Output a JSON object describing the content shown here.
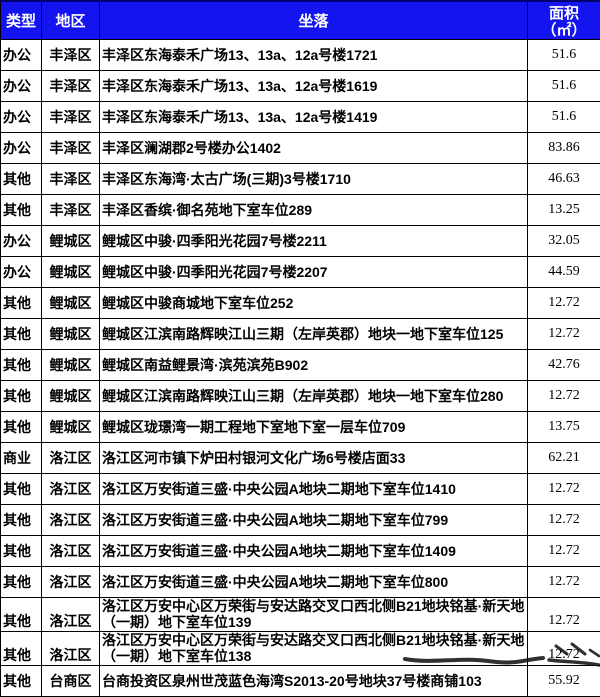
{
  "table": {
    "headers": {
      "type": "类型",
      "district": "地区",
      "location": "坐落",
      "area_line1": "面积",
      "area_line2": "（㎡）"
    },
    "rows": [
      {
        "type": "办公",
        "district": "丰泽区",
        "location": "丰泽区东海泰禾广场13、13a、12a号楼1721",
        "area": "51.6"
      },
      {
        "type": "办公",
        "district": "丰泽区",
        "location": "丰泽区东海泰禾广场13、13a、12a号楼1619",
        "area": "51.6"
      },
      {
        "type": "办公",
        "district": "丰泽区",
        "location": "丰泽区东海泰禾广场13、13a、12a号楼1419",
        "area": "51.6"
      },
      {
        "type": "办公",
        "district": "丰泽区",
        "location": "丰泽区澜湖郡2号楼办公1402",
        "area": "83.86"
      },
      {
        "type": "其他",
        "district": "丰泽区",
        "location": "丰泽区东海湾·太古广场(三期)3号楼1710",
        "area": "46.63"
      },
      {
        "type": "其他",
        "district": "丰泽区",
        "location": "丰泽区香缤·御名苑地下室车位289",
        "area": "13.25"
      },
      {
        "type": "办公",
        "district": "鲤城区",
        "location": "鲤城区中骏·四季阳光花园7号楼2211",
        "area": "32.05"
      },
      {
        "type": "办公",
        "district": "鲤城区",
        "location": "鲤城区中骏·四季阳光花园7号楼2207",
        "area": "44.59"
      },
      {
        "type": "其他",
        "district": "鲤城区",
        "location": "鲤城区中骏商城地下室车位252",
        "area": "12.72"
      },
      {
        "type": "其他",
        "district": "鲤城区",
        "location": "鲤城区江滨南路辉映江山三期（左岸英郡）地块一地下室车位125",
        "area": "12.72"
      },
      {
        "type": "其他",
        "district": "鲤城区",
        "location": "鲤城区南益鲤景湾·滨苑滨苑B902",
        "area": "42.76"
      },
      {
        "type": "其他",
        "district": "鲤城区",
        "location": "鲤城区江滨南路辉映江山三期（左岸英郡）地块一地下室车位280",
        "area": "12.72"
      },
      {
        "type": "其他",
        "district": "鲤城区",
        "location": "鲤城区珑璟湾一期工程地下室地下室一层车位709",
        "area": "13.75"
      },
      {
        "type": "商业",
        "district": "洛江区",
        "location": "洛江区河市镇下炉田村银河文化广场6号楼店面33",
        "area": "62.21"
      },
      {
        "type": "其他",
        "district": "洛江区",
        "location": "洛江区万安街道三盛·中央公园A地块二期地下室车位1410",
        "area": "12.72"
      },
      {
        "type": "其他",
        "district": "洛江区",
        "location": "洛江区万安街道三盛·中央公园A地块二期地下室车位799",
        "area": "12.72"
      },
      {
        "type": "其他",
        "district": "洛江区",
        "location": "洛江区万安街道三盛·中央公园A地块二期地下室车位1409",
        "area": "12.72"
      },
      {
        "type": "其他",
        "district": "洛江区",
        "location": "洛江区万安街道三盛·中央公园A地块二期地下室车位800",
        "area": "12.72"
      },
      {
        "type": "其他",
        "district": "洛江区",
        "location": "洛江区万安中心区万荣街与安达路交叉口西北侧B21地块铭基·新天地（一期）地下室车位139",
        "area": "12.72"
      },
      {
        "type": "其他",
        "district": "洛江区",
        "location": "洛江区万安中心区万荣街与安达路交叉口西北侧B21地块铭基·新天地（一期）地下室车位138",
        "area": "12.72"
      },
      {
        "type": "其他",
        "district": "台商区",
        "location": "台商投资区泉州世茂蓝色海湾S2013-20号地块37号楼商铺103",
        "area": "55.92"
      }
    ]
  },
  "colors": {
    "header_bg": "#1414f0",
    "header_text": "#ffffff",
    "border": "#000000",
    "body_text": "#000000",
    "scribble": "#141414"
  }
}
